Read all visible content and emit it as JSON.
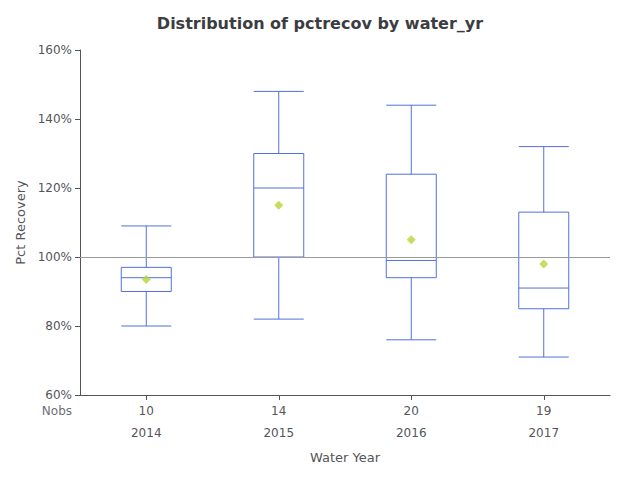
{
  "chart_data": {
    "type": "box",
    "title": "Distribution of pctrecov by water_yr",
    "xlabel": "Water Year",
    "ylabel": "Pct Recovery",
    "categories": [
      2014,
      2015,
      2016,
      2017
    ],
    "nobs_label": "Nobs",
    "nobs": [
      10,
      14,
      20,
      19
    ],
    "whislo": [
      80,
      82,
      76,
      71
    ],
    "q1": [
      90,
      100,
      94,
      85
    ],
    "median": [
      94,
      120,
      99,
      91
    ],
    "q3": [
      97,
      130,
      124,
      113
    ],
    "whishi": [
      109,
      148,
      144,
      132
    ],
    "mean": [
      93.5,
      115,
      105,
      98
    ],
    "marker": "diamond",
    "ref_line": 100,
    "ylim": [
      60,
      160
    ],
    "yticks": [
      {
        "value": 60,
        "label": "60%"
      },
      {
        "value": 80,
        "label": "80%"
      },
      {
        "value": 100,
        "label": "100%"
      },
      {
        "value": 120,
        "label": "120%"
      },
      {
        "value": 140,
        "label": "140%"
      },
      {
        "value": 160,
        "label": "160%"
      }
    ],
    "grid": false
  }
}
